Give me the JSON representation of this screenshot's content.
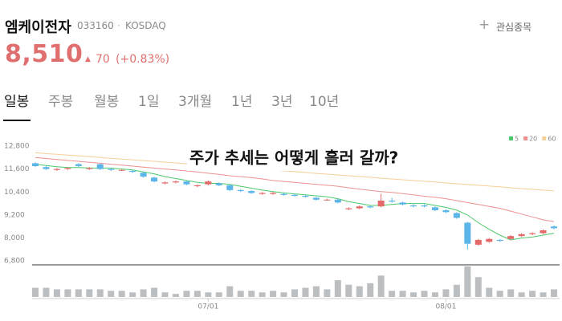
{
  "header": {
    "name": "엠케이전자",
    "code": "033160",
    "market": "KOSDAQ",
    "watch": "관심종목"
  },
  "price": {
    "value": "8,510",
    "change": "70",
    "percent": "(+0.83%)"
  },
  "tabs": [
    "일봉",
    "주봉",
    "월봉",
    "1일",
    "3개월",
    "1년",
    "3년",
    "10년"
  ],
  "active_tab": 0,
  "chart_data": {
    "type": "candlestick",
    "annotation": "주가 추세는 어떻게 흘러 갈까?",
    "categories": [
      null,
      null,
      null,
      null,
      null,
      null,
      null,
      null,
      null,
      null,
      null,
      null,
      null,
      null,
      null,
      null,
      "07/01",
      null,
      null,
      null,
      null,
      null,
      null,
      null,
      null,
      null,
      null,
      null,
      null,
      null,
      null,
      null,
      null,
      null,
      null,
      null,
      null,
      null,
      "08/01",
      null,
      null,
      null,
      null,
      null,
      null,
      null,
      null,
      null,
      null
    ],
    "open": [
      11900,
      11700,
      11550,
      11600,
      11850,
      11600,
      11850,
      11600,
      11550,
      11500,
      11400,
      11150,
      10850,
      10900,
      10950,
      10700,
      10800,
      10850,
      10750,
      10500,
      10450,
      10300,
      10300,
      10300,
      10250,
      10200,
      10100,
      10000,
      10000,
      9500,
      9550,
      9650,
      9650,
      9950,
      9850,
      9700,
      9700,
      9600,
      9450,
      9300,
      8800,
      7650,
      7800,
      7900,
      7950,
      8100,
      8200,
      8250,
      8600
    ],
    "high": [
      11950,
      11750,
      11650,
      11700,
      11900,
      11700,
      11900,
      11650,
      11600,
      11550,
      11450,
      11200,
      10950,
      11000,
      11000,
      10800,
      11000,
      10900,
      10800,
      10550,
      10500,
      10400,
      10400,
      10350,
      10300,
      10250,
      10150,
      10050,
      10050,
      9600,
      9700,
      9700,
      10300,
      10100,
      9900,
      9750,
      9750,
      9650,
      9500,
      9350,
      8850,
      7950,
      8000,
      7950,
      8150,
      8250,
      8300,
      8450,
      8650
    ],
    "low": [
      11700,
      11550,
      11500,
      11550,
      11700,
      11550,
      11550,
      11500,
      11500,
      11400,
      11150,
      10900,
      10800,
      10850,
      10750,
      10650,
      10750,
      10700,
      10450,
      10400,
      10300,
      10250,
      10250,
      10200,
      10150,
      10100,
      9950,
      9950,
      9800,
      9450,
      9500,
      9550,
      9600,
      9850,
      9700,
      9600,
      9600,
      9400,
      9300,
      9000,
      7400,
      7600,
      7750,
      7800,
      7900,
      8050,
      8150,
      8200,
      8450
    ],
    "close": [
      11750,
      11600,
      11600,
      11650,
      11750,
      11650,
      11600,
      11550,
      11550,
      11450,
      11200,
      10950,
      10900,
      10950,
      10800,
      10750,
      10950,
      10750,
      10500,
      10450,
      10350,
      10350,
      10350,
      10250,
      10200,
      10150,
      10000,
      10000,
      9850,
      9550,
      9650,
      9600,
      9950,
      9900,
      9750,
      9650,
      9650,
      9450,
      9350,
      9050,
      7700,
      7900,
      7950,
      7850,
      8100,
      8200,
      8250,
      8400,
      8510
    ],
    "up_color": "#e46a6a",
    "down_color": "#5bb5e8",
    "volume": [
      360000,
      360000,
      300000,
      300000,
      300000,
      300000,
      300000,
      240000,
      240000,
      180000,
      300000,
      360000,
      180000,
      120000,
      240000,
      240000,
      180000,
      180000,
      420000,
      240000,
      240000,
      180000,
      240000,
      180000,
      300000,
      360000,
      420000,
      300000,
      660000,
      480000,
      420000,
      540000,
      840000,
      240000,
      240000,
      180000,
      240000,
      180000,
      300000,
      480000,
      1200000,
      780000,
      360000,
      240000,
      300000,
      180000,
      240000,
      180000,
      300000
    ],
    "volume_color": "#bcbfc2",
    "series": [
      {
        "name": "5",
        "color": "#4cc86a",
        "values": [
          11850,
          11780,
          11720,
          11680,
          11680,
          11650,
          11650,
          11650,
          11600,
          11550,
          11450,
          11350,
          11200,
          11100,
          11000,
          10900,
          10850,
          10850,
          10800,
          10700,
          10600,
          10500,
          10420,
          10350,
          10300,
          10250,
          10200,
          10150,
          10050,
          9900,
          9800,
          9700,
          9700,
          9750,
          9800,
          9800,
          9800,
          9700,
          9600,
          9450,
          9200,
          8800,
          8450,
          8150,
          7900,
          8000,
          8050,
          8150,
          8250
        ]
      },
      {
        "name": "20",
        "color": "#ee9090",
        "values": [
          12200,
          12150,
          12100,
          12050,
          12000,
          11950,
          11900,
          11850,
          11800,
          11750,
          11700,
          11650,
          11600,
          11550,
          11500,
          11450,
          11380,
          11320,
          11250,
          11200,
          11150,
          11080,
          11000,
          10950,
          10900,
          10850,
          10800,
          10750,
          10700,
          10620,
          10550,
          10480,
          10420,
          10380,
          10320,
          10250,
          10180,
          10120,
          10050,
          9950,
          9850,
          9750,
          9650,
          9550,
          9400,
          9250,
          9100,
          8950,
          8850
        ]
      },
      {
        "name": "60",
        "color": "#f6cf98",
        "values": [
          12450,
          12400,
          12370,
          12330,
          12290,
          12250,
          12200,
          12160,
          12120,
          12080,
          12040,
          12000,
          11960,
          11920,
          11870,
          11830,
          11790,
          11750,
          11710,
          11670,
          11620,
          11580,
          11540,
          11500,
          11460,
          11420,
          11370,
          11330,
          11290,
          11250,
          11210,
          11170,
          11120,
          11080,
          11040,
          11000,
          10960,
          10920,
          10870,
          10830,
          10790,
          10750,
          10710,
          10670,
          10620,
          10580,
          10540,
          10500,
          10460
        ]
      }
    ],
    "ylim": [
      6600,
      13300
    ],
    "yticks": [
      {
        "value": 12800,
        "label": "12,800"
      },
      {
        "value": 11600,
        "label": "11,600"
      },
      {
        "value": 10400,
        "label": "10,400"
      },
      {
        "value": 9200,
        "label": "9,200"
      },
      {
        "value": 8000,
        "label": "8,000"
      },
      {
        "value": 6800,
        "label": "6,800"
      }
    ],
    "grid": false
  }
}
